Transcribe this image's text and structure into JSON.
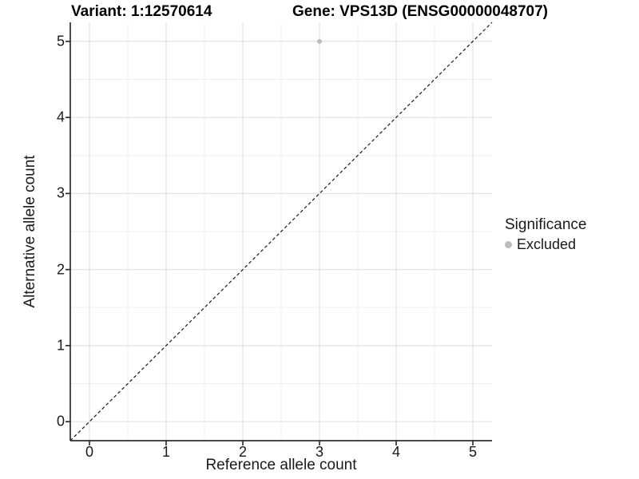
{
  "figure": {
    "background": "#ffffff",
    "title_left": "Variant: 1:12570614",
    "title_right": "Gene: VPS13D (ENSG00000048707)"
  },
  "axes": {
    "x": {
      "label": "Reference allele count",
      "tick_labels": [
        "0",
        "1",
        "2",
        "3",
        "4",
        "5"
      ]
    },
    "y": {
      "label": "Alternative allele count",
      "tick_labels": [
        "0",
        "1",
        "2",
        "3",
        "4",
        "5"
      ]
    }
  },
  "legend": {
    "title": "Significance",
    "items": [
      {
        "label": "Excluded",
        "color": "#bdbdbd"
      }
    ]
  },
  "chart_data": {
    "type": "scatter",
    "title": "Variant: 1:12570614 / Gene: VPS13D (ENSG00000048707)",
    "xlabel": "Reference allele count",
    "ylabel": "Alternative allele count",
    "xlim": [
      -0.25,
      5.25
    ],
    "ylim": [
      -0.25,
      5.25
    ],
    "x_ticks": [
      0,
      1,
      2,
      3,
      4,
      5
    ],
    "y_ticks": [
      0,
      1,
      2,
      3,
      4,
      5
    ],
    "minor_grid_step": 0.5,
    "grid": true,
    "legend_position": "right",
    "series": [
      {
        "name": "Excluded",
        "color": "#bdbdbd",
        "marker": "circle",
        "marker_radius": 3,
        "points": [
          {
            "x": 3,
            "y": 5
          }
        ]
      }
    ],
    "reference_line": {
      "type": "identity y=x",
      "style": "dashed",
      "color": "#1a1a1a"
    }
  },
  "colors": {
    "grid_major": "#e2e2e2",
    "grid_minor": "#efefef",
    "axis_line": "#2e2e2e",
    "text": "#1a1a1a",
    "point": "#bdbdbd"
  }
}
